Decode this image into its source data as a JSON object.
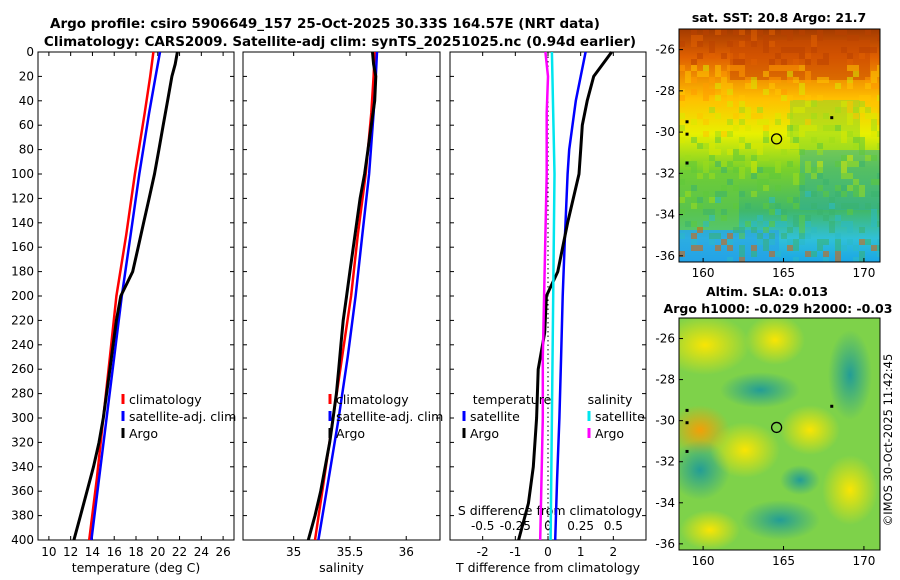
{
  "header": {
    "line1": "Argo profile: csiro 5906649_157 25-Oct-2025 30.33S 164.57E (NRT data)",
    "line2": "Climatology: CARS2009. Satellite-adj clim: synTS_20251025.nc (0.94d earlier)"
  },
  "side_label": "©IMOS 30-Oct-2025 11:42:45",
  "colors": {
    "red": "#ff0000",
    "blue": "#0000ff",
    "black": "#000000",
    "cyan": "#00e5ee",
    "magenta": "#ff00ff"
  },
  "chart_data": [
    {
      "id": "temperature",
      "type": "line",
      "xlabel": "temperature (deg C)",
      "xlim": [
        9,
        27
      ],
      "xticks": [
        10,
        12,
        14,
        16,
        18,
        20,
        22,
        24,
        26
      ],
      "xtick_labels": [
        "10",
        "12",
        "14",
        "16",
        "18",
        "20",
        "22",
        "24",
        "26"
      ],
      "ylim": [
        0,
        400
      ],
      "yticks": [
        0,
        20,
        40,
        60,
        80,
        100,
        120,
        140,
        160,
        180,
        200,
        220,
        240,
        260,
        280,
        300,
        320,
        340,
        360,
        380,
        400
      ],
      "ytick_labels": [
        "0",
        "20",
        "40",
        "60",
        "80",
        "100",
        "120",
        "140",
        "160",
        "180",
        "200",
        "220",
        "240",
        "260",
        "280",
        "300",
        "320",
        "340",
        "360",
        "380",
        "400"
      ],
      "legend": [
        "climatology",
        "satellite-adj. clim",
        "Argo"
      ],
      "series": [
        {
          "name": "climatology",
          "color": "red",
          "depth": [
            0,
            20,
            50,
            100,
            150,
            200,
            250,
            300,
            350,
            400
          ],
          "values": [
            19.6,
            19.3,
            18.8,
            17.9,
            17.1,
            16.2,
            15.6,
            15.0,
            14.4,
            13.7
          ]
        },
        {
          "name": "satellite-adj. clim",
          "color": "blue",
          "depth": [
            0,
            20,
            50,
            100,
            150,
            200,
            250,
            300,
            350,
            400
          ],
          "values": [
            20.2,
            19.8,
            19.2,
            18.3,
            17.5,
            16.7,
            16.0,
            15.3,
            14.6,
            13.9
          ]
        },
        {
          "name": "Argo",
          "color": "black",
          "depth": [
            0,
            10,
            20,
            40,
            60,
            80,
            100,
            120,
            140,
            160,
            180,
            200,
            220,
            240,
            260,
            280,
            300,
            320,
            340,
            360,
            380,
            400
          ],
          "values": [
            21.8,
            21.6,
            21.3,
            20.9,
            20.5,
            20.1,
            19.7,
            19.2,
            18.7,
            18.2,
            17.7,
            16.6,
            16.2,
            15.9,
            15.6,
            15.3,
            15.0,
            14.6,
            14.1,
            13.5,
            12.9,
            12.3
          ]
        }
      ]
    },
    {
      "id": "salinity",
      "type": "line",
      "xlabel": "salinity",
      "xlim": [
        34.55,
        36.3
      ],
      "xticks": [
        35,
        35.5,
        36
      ],
      "xtick_labels": [
        "35",
        "35.5",
        "36"
      ],
      "ylim": [
        0,
        400
      ],
      "legend": [
        "climatology",
        "satellite-adj. clim",
        "Argo"
      ],
      "series": [
        {
          "name": "climatology",
          "color": "red",
          "depth": [
            0,
            20,
            50,
            100,
            150,
            200,
            250,
            300,
            350,
            400
          ],
          "values": [
            35.72,
            35.71,
            35.69,
            35.64,
            35.57,
            35.51,
            35.43,
            35.35,
            35.27,
            35.19
          ]
        },
        {
          "name": "satellite-adj. clim",
          "color": "blue",
          "depth": [
            0,
            20,
            50,
            100,
            150,
            200,
            250,
            300,
            350,
            400
          ],
          "values": [
            35.74,
            35.73,
            35.71,
            35.67,
            35.61,
            35.55,
            35.48,
            35.4,
            35.31,
            35.22
          ]
        },
        {
          "name": "Argo",
          "color": "black",
          "depth": [
            0,
            10,
            20,
            40,
            60,
            80,
            100,
            120,
            140,
            160,
            180,
            200,
            220,
            240,
            260,
            280,
            300,
            320,
            340,
            360,
            380,
            400
          ],
          "values": [
            35.7,
            35.71,
            35.73,
            35.72,
            35.69,
            35.66,
            35.63,
            35.59,
            35.56,
            35.53,
            35.5,
            35.47,
            35.44,
            35.42,
            35.4,
            35.38,
            35.35,
            35.32,
            35.28,
            35.24,
            35.19,
            35.13
          ]
        }
      ]
    },
    {
      "id": "difference",
      "type": "line",
      "xlabel": "T difference from climatology",
      "xlabel_top": "S difference from climatology",
      "xlim": [
        -3,
        3
      ],
      "xticks": [
        -2,
        -1,
        0,
        1,
        2
      ],
      "xtick_labels": [
        "-2",
        "-1",
        "0",
        "1",
        "2"
      ],
      "sxticks": [
        -0.5,
        -0.25,
        0,
        0.25,
        0.5
      ],
      "sxtick_labels": [
        "-0.5",
        "-0.25",
        "0",
        "0.25",
        "0.5"
      ],
      "ylim": [
        0,
        400
      ],
      "legend_titles": [
        "temperature",
        "salinity"
      ],
      "legend": [
        "satellite",
        "Argo",
        "satellite",
        "Argo"
      ],
      "series": [
        {
          "name": "T satellite",
          "color": "blue",
          "depth": [
            0,
            20,
            40,
            60,
            80,
            100,
            150,
            200,
            250,
            300,
            350,
            400
          ],
          "values": [
            1.15,
            1.0,
            0.85,
            0.75,
            0.65,
            0.6,
            0.52,
            0.45,
            0.4,
            0.35,
            0.28,
            0.22
          ]
        },
        {
          "name": "T Argo",
          "color": "black",
          "depth": [
            0,
            20,
            40,
            60,
            80,
            100,
            140,
            180,
            200,
            230,
            260,
            300,
            340,
            370,
            400
          ],
          "values": [
            1.95,
            1.4,
            1.2,
            1.05,
            1.0,
            0.95,
            0.6,
            0.3,
            -0.05,
            -0.1,
            -0.3,
            -0.35,
            -0.45,
            -0.6,
            -0.9
          ]
        },
        {
          "name": "S satellite",
          "color": "cyan",
          "depth": [
            0,
            50,
            100,
            200,
            300,
            400
          ],
          "values": [
            0.03,
            0.04,
            0.05,
            0.04,
            0.03,
            0.02
          ]
        },
        {
          "name": "S Argo",
          "color": "magenta",
          "depth": [
            0,
            20,
            50,
            100,
            150,
            200,
            250,
            300,
            350,
            400
          ],
          "values": [
            -0.02,
            0.0,
            -0.01,
            -0.01,
            -0.02,
            -0.03,
            -0.04,
            -0.04,
            -0.05,
            -0.06
          ]
        }
      ]
    },
    {
      "id": "sst_map",
      "type": "heatmap",
      "title": "sat. SST: 20.8 Argo: 21.7",
      "xlim": [
        158.5,
        171
      ],
      "ylim": [
        -36.3,
        -25
      ],
      "xticks": [
        160,
        165,
        170
      ],
      "xtick_labels": [
        "160",
        "165",
        "170"
      ],
      "yticks": [
        -26,
        -28,
        -30,
        -32,
        -34,
        -36
      ],
      "ytick_labels": [
        "-26",
        "-28",
        "-30",
        "-32",
        "-34",
        "-36"
      ],
      "marker": [
        164.57,
        -30.33
      ]
    },
    {
      "id": "sla_map",
      "type": "heatmap",
      "title": "Altim. SLA: 0.013",
      "subtitle": "Argo h1000: -0.029 h2000: -0.03",
      "xlim": [
        158.5,
        171
      ],
      "ylim": [
        -36.3,
        -25
      ],
      "xticks": [
        160,
        165,
        170
      ],
      "xtick_labels": [
        "160",
        "165",
        "170"
      ],
      "yticks": [
        -26,
        -28,
        -30,
        -32,
        -34,
        -36
      ],
      "ytick_labels": [
        "-26",
        "-28",
        "-30",
        "-32",
        "-34",
        "-36"
      ],
      "marker": [
        164.57,
        -30.33
      ]
    }
  ]
}
